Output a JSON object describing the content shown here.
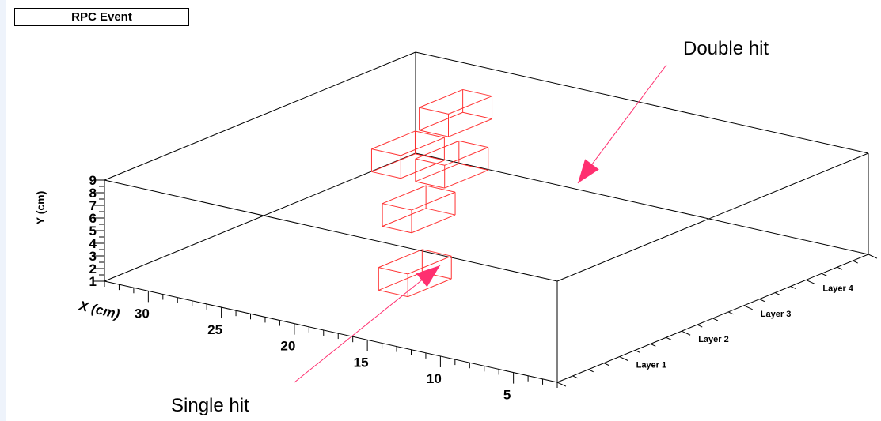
{
  "title": "RPC Event",
  "annotations": {
    "double_hit": "Double hit",
    "single_hit": "Single hit"
  },
  "colors": {
    "frame": "#000000",
    "hit": "#ff3333",
    "arrow": "#ff3070"
  },
  "chart_data": {
    "type": "scatter",
    "title": "RPC Event",
    "xlabel": "X (cm)",
    "ylabel": "Y (cm)",
    "zlabel": "",
    "x_ticks": [
      "5",
      "10",
      "15",
      "20",
      "25",
      "30"
    ],
    "y_ticks": [
      "1",
      "2",
      "3",
      "4",
      "5",
      "6",
      "7",
      "8",
      "9"
    ],
    "z_ticks": [
      "Layer 1",
      "Layer 2",
      "Layer 3",
      "Layer 4"
    ],
    "xlim": [
      2,
      33
    ],
    "ylim": [
      1,
      9
    ],
    "zlim": [
      0,
      5
    ],
    "hits": [
      {
        "x": 16,
        "layer": 1,
        "y": 4
      },
      {
        "x": 20,
        "layer": 2,
        "y": 6
      },
      {
        "x": 22,
        "layer": 3,
        "y": 7
      },
      {
        "x": 25,
        "layer": 3,
        "y": 7
      },
      {
        "x": 26,
        "layer": 4,
        "y": 8
      }
    ]
  }
}
